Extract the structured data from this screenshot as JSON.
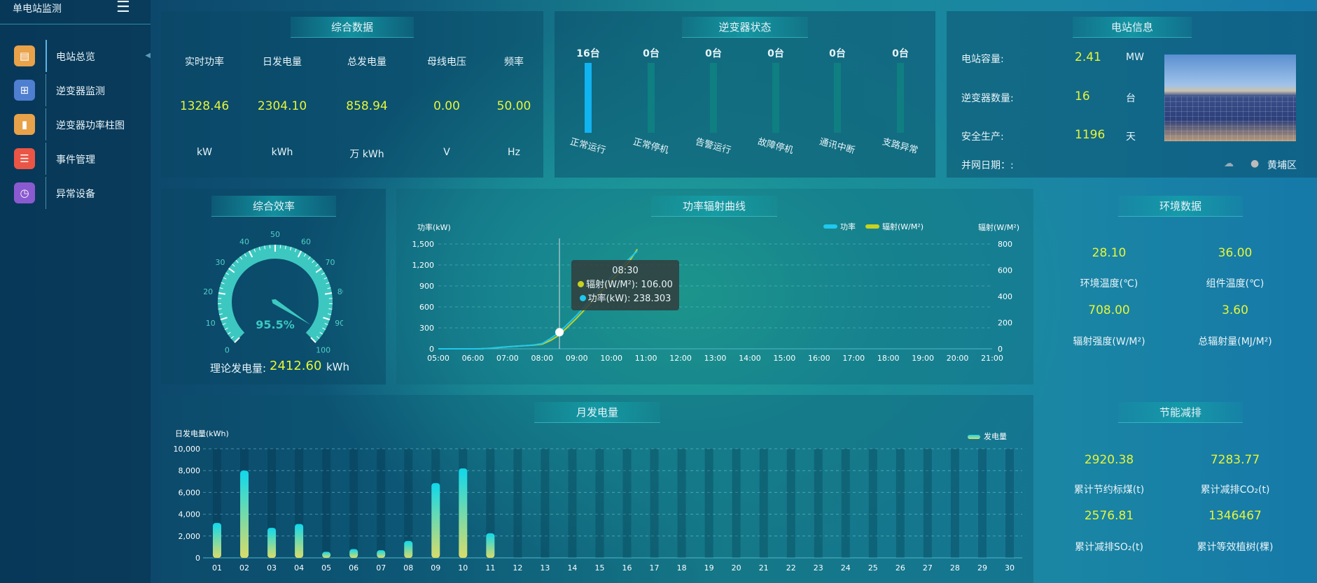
{
  "sidebar": {
    "title": "单电站监测",
    "items": [
      {
        "label": "电站总览",
        "icon": "document-icon",
        "color": "#e8a24a"
      },
      {
        "label": "逆变器监测",
        "icon": "monitor-icon",
        "color": "#4f7fd0"
      },
      {
        "label": "逆变器功率柱图",
        "icon": "bar-chart-icon",
        "color": "#e8a24a"
      },
      {
        "label": "事件管理",
        "icon": "notepad-icon",
        "color": "#ea5545"
      },
      {
        "label": "异常设备",
        "icon": "clock-device-icon",
        "color": "#8a5ad0"
      }
    ]
  },
  "summary": {
    "title": "综合数据",
    "cols": [
      {
        "label": "实时功率",
        "value": "1328.46",
        "unit": "kW"
      },
      {
        "label": "日发电量",
        "value": "2304.10",
        "unit": "kWh"
      },
      {
        "label": "总发电量",
        "value": "858.94",
        "unit": "万  kWh"
      },
      {
        "label": "母线电压",
        "value": "0.00",
        "unit": "V"
      },
      {
        "label": "频率",
        "value": "50.00",
        "unit": "Hz"
      }
    ]
  },
  "inverter": {
    "title": "逆变器状态",
    "items": [
      {
        "count": "16台",
        "label": "正常运行",
        "value": 16
      },
      {
        "count": "0台",
        "label": "正常停机",
        "value": 0
      },
      {
        "count": "0台",
        "label": "告警运行",
        "value": 0
      },
      {
        "count": "0台",
        "label": "故障停机",
        "value": 0
      },
      {
        "count": "0台",
        "label": "通讯中断",
        "value": 0
      },
      {
        "count": "0台",
        "label": "支路异常",
        "value": 0
      }
    ]
  },
  "station": {
    "title": "电站信息",
    "rows": [
      {
        "label": "电站容量:",
        "value": "2.41",
        "unit": "MW"
      },
      {
        "label": "逆变器数量:",
        "value": "16",
        "unit": "台"
      },
      {
        "label": "安全生产:",
        "value": "1196",
        "unit": "天"
      }
    ],
    "grid_date_label": "并网日期：:",
    "location": "黄埔区"
  },
  "efficiency": {
    "title": "综合效率",
    "value": 95.5,
    "value_text": "95.5%",
    "ticks": [
      "0",
      "10",
      "20",
      "30",
      "40",
      "50",
      "60",
      "70",
      "80",
      "90",
      "100"
    ],
    "theory_label": "理论发电量:",
    "theory_value": "2412.60",
    "theory_unit": "kWh"
  },
  "power_chart": {
    "title": "功率辐射曲线",
    "tooltip": {
      "time": "08:30",
      "rad": "辐射(W/M²): 106.00",
      "pow": "功率(kW): 238.303"
    }
  },
  "env": {
    "title": "环境数据",
    "items": [
      {
        "value": "28.10",
        "label": "环境温度(℃)"
      },
      {
        "value": "36.00",
        "label": "组件温度(℃)"
      },
      {
        "value": "708.00",
        "label": "辐射强度(W/M²)"
      },
      {
        "value": "3.60",
        "label": "总辐射量(MJ/M²)"
      }
    ]
  },
  "energy": {
    "title": "节能减排",
    "items": [
      {
        "value": "2920.38",
        "label": "累计节约标煤(t)"
      },
      {
        "value": "7283.77",
        "label": "累计减排CO₂(t)"
      },
      {
        "value": "2576.81",
        "label": "累计减排SO₂(t)"
      },
      {
        "value": "1346467",
        "label": "累计等效植树(棵)"
      }
    ]
  },
  "monthly": {
    "title": "月发电量"
  },
  "chart_data": [
    {
      "type": "line",
      "ylabel": "功率(kW)",
      "y2label": "辐射(W/M²)",
      "ylim": [
        0,
        1500
      ],
      "y2lim": [
        0,
        800
      ],
      "yticks": [
        "0",
        "300",
        "600",
        "900",
        "1,200",
        "1,500"
      ],
      "y2ticks": [
        "0",
        "200",
        "400",
        "600",
        "800"
      ],
      "xticks": [
        "05:00",
        "06:00",
        "07:00",
        "08:00",
        "09:00",
        "10:00",
        "11:00",
        "12:00",
        "13:00",
        "14:00",
        "15:00",
        "16:00",
        "17:00",
        "18:00",
        "19:00",
        "20:00",
        "21:00"
      ],
      "legend": "top-right",
      "colors": {
        "功率": "#1ec8ee",
        "辐射(W/M²)": "#c8d21e"
      },
      "x": [
        "05:00",
        "05:15",
        "05:30",
        "05:45",
        "06:00",
        "06:15",
        "06:30",
        "06:45",
        "07:00",
        "07:15",
        "07:30",
        "07:45",
        "08:00",
        "08:15",
        "08:30",
        "08:45",
        "09:00",
        "09:15",
        "09:30",
        "09:45",
        "10:00",
        "10:15",
        "10:30",
        "10:45"
      ],
      "series": [
        {
          "name": "功率",
          "axis": "left",
          "values": [
            0,
            0,
            0,
            0,
            0,
            2,
            8,
            20,
            30,
            38,
            45,
            55,
            75,
            150,
            238.303,
            360,
            480,
            620,
            760,
            900,
            1030,
            1160,
            1280,
            1400
          ]
        },
        {
          "name": "辐射(W/M²)",
          "axis": "right",
          "values": [
            0,
            0,
            0,
            0,
            0,
            1,
            4,
            10,
            15,
            20,
            24,
            28,
            35,
            65,
            106,
            170,
            235,
            305,
            380,
            450,
            520,
            590,
            660,
            760
          ]
        }
      ]
    },
    {
      "type": "bar",
      "ylabel": "日发电量(kWh)",
      "ylim": [
        0,
        10000
      ],
      "yticks": [
        "0",
        "2,000",
        "4,000",
        "6,000",
        "8,000",
        "10,000"
      ],
      "legend": "top-right",
      "categories": [
        "01",
        "02",
        "03",
        "04",
        "05",
        "06",
        "07",
        "08",
        "09",
        "10",
        "11",
        "12",
        "13",
        "14",
        "15",
        "16",
        "17",
        "18",
        "19",
        "20",
        "21",
        "22",
        "23",
        "24",
        "25",
        "26",
        "27",
        "28",
        "29",
        "30"
      ],
      "series": [
        {
          "name": "发电量",
          "values": [
            3200,
            8000,
            2750,
            3100,
            550,
            800,
            700,
            1550,
            6850,
            8200,
            2250,
            null,
            null,
            null,
            null,
            null,
            null,
            null,
            null,
            null,
            null,
            null,
            null,
            null,
            null,
            null,
            null,
            null,
            null,
            null
          ]
        }
      ]
    }
  ]
}
